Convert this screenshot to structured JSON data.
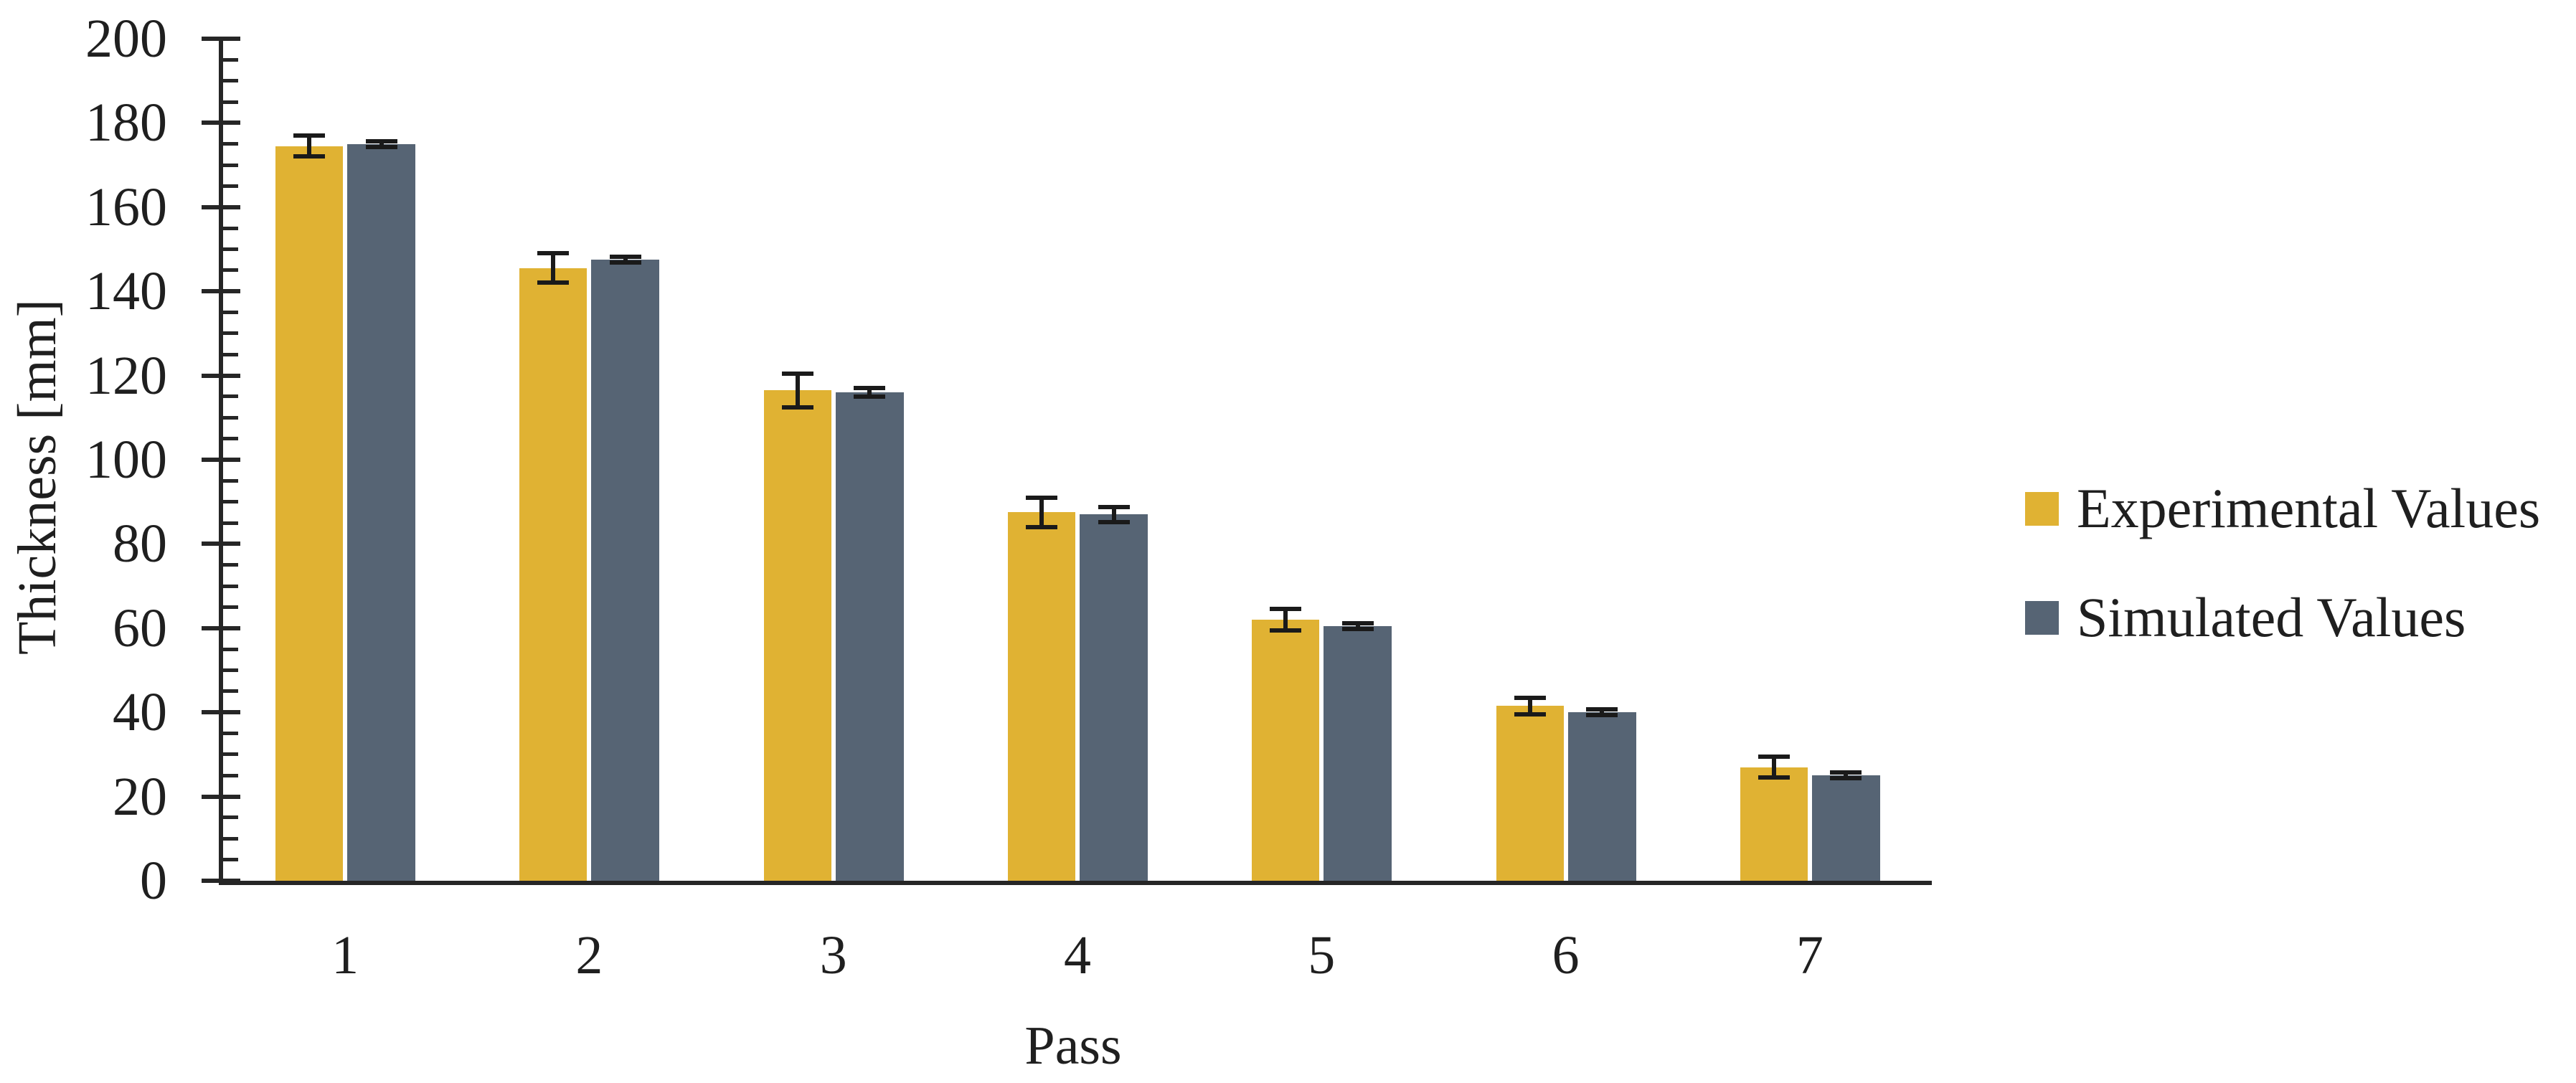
{
  "figure": {
    "background": "#ffffff",
    "text_color": "#1f1f1f",
    "axis_color": "#262626",
    "error_bar_color": "#1a1a1a"
  },
  "chart_data": {
    "type": "bar",
    "title": "",
    "categories": [
      "1",
      "2",
      "3",
      "4",
      "5",
      "6",
      "7"
    ],
    "series": [
      {
        "name": "Experimental Values",
        "color": "#E0B233",
        "values": [
          174.5,
          145.5,
          116.5,
          87.5,
          62,
          41.5,
          27
        ],
        "errors": [
          2.5,
          3.5,
          4,
          3.5,
          2.5,
          2,
          2.5
        ]
      },
      {
        "name": "Simulated Values",
        "color": "#566474",
        "values": [
          175,
          147.5,
          116,
          87,
          60.5,
          40,
          25
        ],
        "errors": [
          0.7,
          0.7,
          1,
          1.8,
          0.7,
          0.7,
          0.7
        ]
      }
    ],
    "xlabel": "Pass",
    "ylabel": "Thickness [mm]",
    "ylim": [
      0,
      200
    ],
    "y_major_step": 20,
    "y_minor_step": 5,
    "y_tick_labels": [
      "0",
      "20",
      "40",
      "60",
      "80",
      "100",
      "120",
      "140",
      "160",
      "180",
      "200"
    ],
    "error_bars": true,
    "grid": false,
    "legend_position": "right"
  }
}
